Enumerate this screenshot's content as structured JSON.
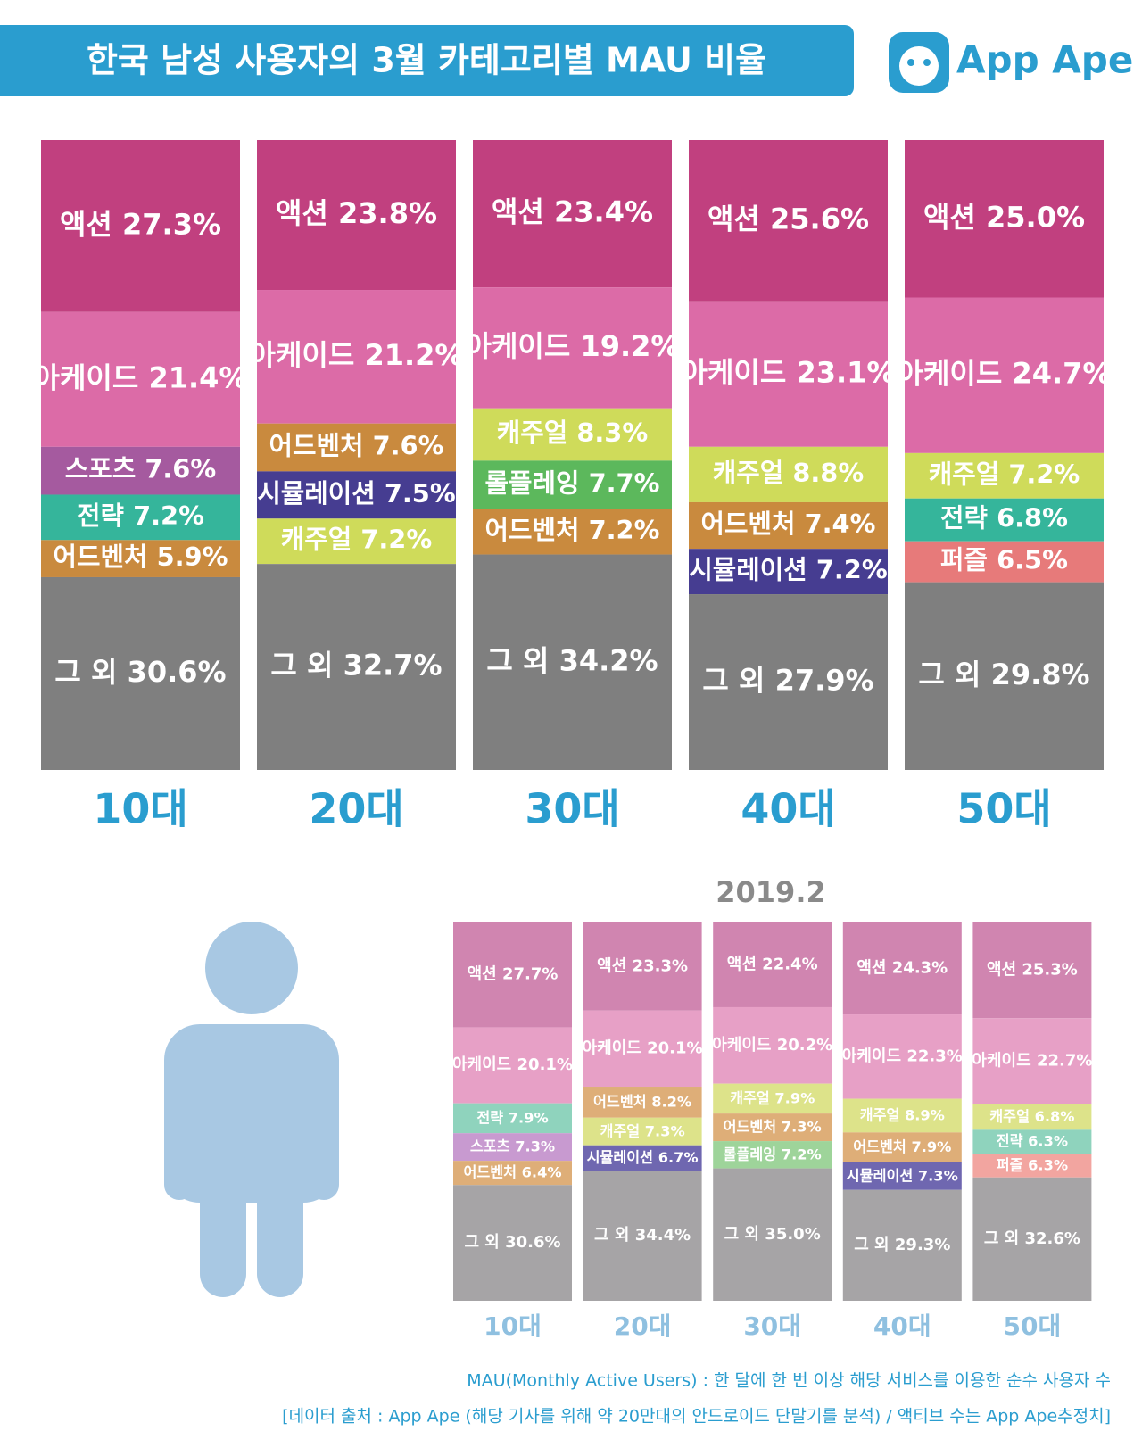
{
  "title": "한국 남성 사용자의 3월 카테고리별 MAU 비율",
  "logo": "App Ape",
  "chart_data": [
    {
      "type": "stacked-bar",
      "categories": [
        "10대",
        "20대",
        "30대",
        "40대",
        "50대"
      ],
      "columns": [
        {
          "segments": [
            {
              "name": "액션",
              "value": 27.3,
              "value_label": "27.3%",
              "color": "#c1407f"
            },
            {
              "name": "아케이드",
              "value": 21.4,
              "value_label": "21.4%",
              "color": "#dc6ba7"
            },
            {
              "name": "스포츠",
              "value": 7.6,
              "value_label": "7.6%",
              "color": "#a55a9f"
            },
            {
              "name": "전략",
              "value": 7.2,
              "value_label": "7.2%",
              "color": "#35b59b"
            },
            {
              "name": "어드벤처",
              "value": 5.9,
              "value_label": "5.9%",
              "color": "#c98a3e"
            },
            {
              "name": "그 외",
              "value": 30.6,
              "value_label": "30.6%",
              "color": "#7f7f7f"
            }
          ]
        },
        {
          "segments": [
            {
              "name": "액션",
              "value": 23.8,
              "value_label": "23.8%",
              "color": "#c1407f"
            },
            {
              "name": "아케이드",
              "value": 21.2,
              "value_label": "21.2%",
              "color": "#dc6ba7"
            },
            {
              "name": "어드벤처",
              "value": 7.6,
              "value_label": "7.6%",
              "color": "#c98a3e"
            },
            {
              "name": "시뮬레이션",
              "value": 7.5,
              "value_label": "7.5%",
              "color": "#463d91"
            },
            {
              "name": "캐주얼",
              "value": 7.2,
              "value_label": "7.2%",
              "color": "#cfdb5a"
            },
            {
              "name": "그 외",
              "value": 32.7,
              "value_label": "32.7%",
              "color": "#7f7f7f"
            }
          ]
        },
        {
          "segments": [
            {
              "name": "액션",
              "value": 23.4,
              "value_label": "23.4%",
              "color": "#c1407f"
            },
            {
              "name": "아케이드",
              "value": 19.2,
              "value_label": "19.2%",
              "color": "#dc6ba7"
            },
            {
              "name": "캐주얼",
              "value": 8.3,
              "value_label": "8.3%",
              "color": "#cfdb5a"
            },
            {
              "name": "롤플레잉",
              "value": 7.7,
              "value_label": "7.7%",
              "color": "#5cb85c"
            },
            {
              "name": "어드벤처",
              "value": 7.2,
              "value_label": "7.2%",
              "color": "#c98a3e"
            },
            {
              "name": "그 외",
              "value": 34.2,
              "value_label": "34.2%",
              "color": "#7f7f7f"
            }
          ]
        },
        {
          "segments": [
            {
              "name": "액션",
              "value": 25.6,
              "value_label": "25.6%",
              "color": "#c1407f"
            },
            {
              "name": "아케이드",
              "value": 23.1,
              "value_label": "23.1%",
              "color": "#dc6ba7"
            },
            {
              "name": "캐주얼",
              "value": 8.8,
              "value_label": "8.8%",
              "color": "#cfdb5a"
            },
            {
              "name": "어드벤처",
              "value": 7.4,
              "value_label": "7.4%",
              "color": "#c98a3e"
            },
            {
              "name": "시뮬레이션",
              "value": 7.2,
              "value_label": "7.2%",
              "color": "#463d91"
            },
            {
              "name": "그 외",
              "value": 27.9,
              "value_label": "27.9%",
              "color": "#7f7f7f"
            }
          ]
        },
        {
          "segments": [
            {
              "name": "액션",
              "value": 25.0,
              "value_label": "25.0%",
              "color": "#c1407f"
            },
            {
              "name": "아케이드",
              "value": 24.7,
              "value_label": "24.7%",
              "color": "#dc6ba7"
            },
            {
              "name": "캐주얼",
              "value": 7.2,
              "value_label": "7.2%",
              "color": "#cfdb5a"
            },
            {
              "name": "전략",
              "value": 6.8,
              "value_label": "6.8%",
              "color": "#35b59b"
            },
            {
              "name": "퍼즐",
              "value": 6.5,
              "value_label": "6.5%",
              "color": "#e77a7a"
            },
            {
              "name": "그 외",
              "value": 29.8,
              "value_label": "29.8%",
              "color": "#7f7f7f"
            }
          ]
        }
      ]
    },
    {
      "type": "stacked-bar",
      "title": "2019.2",
      "categories": [
        "10대",
        "20대",
        "30대",
        "40대",
        "50대"
      ],
      "columns": [
        {
          "segments": [
            {
              "name": "액션",
              "value": 27.7,
              "value_label": "27.7%",
              "color": "#d085b0"
            },
            {
              "name": "아케이드",
              "value": 20.1,
              "value_label": "20.1%",
              "color": "#e7a0c6"
            },
            {
              "name": "전략",
              "value": 7.9,
              "value_label": "7.9%",
              "color": "#8fd3bd"
            },
            {
              "name": "스포츠",
              "value": 7.3,
              "value_label": "7.3%",
              "color": "#c89ad0"
            },
            {
              "name": "어드벤처",
              "value": 6.4,
              "value_label": "6.4%",
              "color": "#deae78"
            },
            {
              "name": "그 외",
              "value": 30.6,
              "value_label": "30.6%",
              "color": "#a6a4a6"
            }
          ]
        },
        {
          "segments": [
            {
              "name": "액션",
              "value": 23.3,
              "value_label": "23.3%",
              "color": "#d085b0"
            },
            {
              "name": "아케이드",
              "value": 20.1,
              "value_label": "20.1%",
              "color": "#e7a0c6"
            },
            {
              "name": "어드벤처",
              "value": 8.2,
              "value_label": "8.2%",
              "color": "#deae78"
            },
            {
              "name": "캐주얼",
              "value": 7.3,
              "value_label": "7.3%",
              "color": "#dde38a"
            },
            {
              "name": "시뮬레이션",
              "value": 6.7,
              "value_label": "6.7%",
              "color": "#6f67b0"
            },
            {
              "name": "그 외",
              "value": 34.4,
              "value_label": "34.4%",
              "color": "#a6a4a6"
            }
          ]
        },
        {
          "segments": [
            {
              "name": "액션",
              "value": 22.4,
              "value_label": "22.4%",
              "color": "#d085b0"
            },
            {
              "name": "아케이드",
              "value": 20.2,
              "value_label": "20.2%",
              "color": "#e7a0c6"
            },
            {
              "name": "캐주얼",
              "value": 7.9,
              "value_label": "7.9%",
              "color": "#dde38a"
            },
            {
              "name": "어드벤처",
              "value": 7.3,
              "value_label": "7.3%",
              "color": "#deae78"
            },
            {
              "name": "롤플레잉",
              "value": 7.2,
              "value_label": "7.2%",
              "color": "#9ed49a"
            },
            {
              "name": "그 외",
              "value": 35.0,
              "value_label": "35.0%",
              "color": "#a6a4a6"
            }
          ]
        },
        {
          "segments": [
            {
              "name": "액션",
              "value": 24.3,
              "value_label": "24.3%",
              "color": "#d085b0"
            },
            {
              "name": "아케이드",
              "value": 22.3,
              "value_label": "22.3%",
              "color": "#e7a0c6"
            },
            {
              "name": "캐주얼",
              "value": 8.9,
              "value_label": "8.9%",
              "color": "#dde38a"
            },
            {
              "name": "어드벤처",
              "value": 7.9,
              "value_label": "7.9%",
              "color": "#deae78"
            },
            {
              "name": "시뮬레이션",
              "value": 7.3,
              "value_label": "7.3%",
              "color": "#6f67b0"
            },
            {
              "name": "그 외",
              "value": 29.3,
              "value_label": "29.3%",
              "color": "#a6a4a6"
            }
          ]
        },
        {
          "segments": [
            {
              "name": "액션",
              "value": 25.3,
              "value_label": "25.3%",
              "color": "#d085b0"
            },
            {
              "name": "아케이드",
              "value": 22.7,
              "value_label": "22.7%",
              "color": "#e7a0c6"
            },
            {
              "name": "캐주얼",
              "value": 6.8,
              "value_label": "6.8%",
              "color": "#dde38a"
            },
            {
              "name": "전략",
              "value": 6.3,
              "value_label": "6.3%",
              "color": "#8fd3bd"
            },
            {
              "name": "퍼즐",
              "value": 6.3,
              "value_label": "6.3%",
              "color": "#f2a5a0"
            },
            {
              "name": "그 외",
              "value": 32.6,
              "value_label": "32.6%",
              "color": "#a6a4a6"
            }
          ]
        }
      ]
    }
  ],
  "notes": [
    "MAU(Monthly Active Users) : 한 달에 한 번 이상 해당 서비스를 이용한 순수 사용자 수",
    "[데이터 출처 : App Ape (해당 기사를 위해 약 20만대의 안드로이드 단말기를 분석) / 액티브 수는 App Ape추정치]"
  ]
}
